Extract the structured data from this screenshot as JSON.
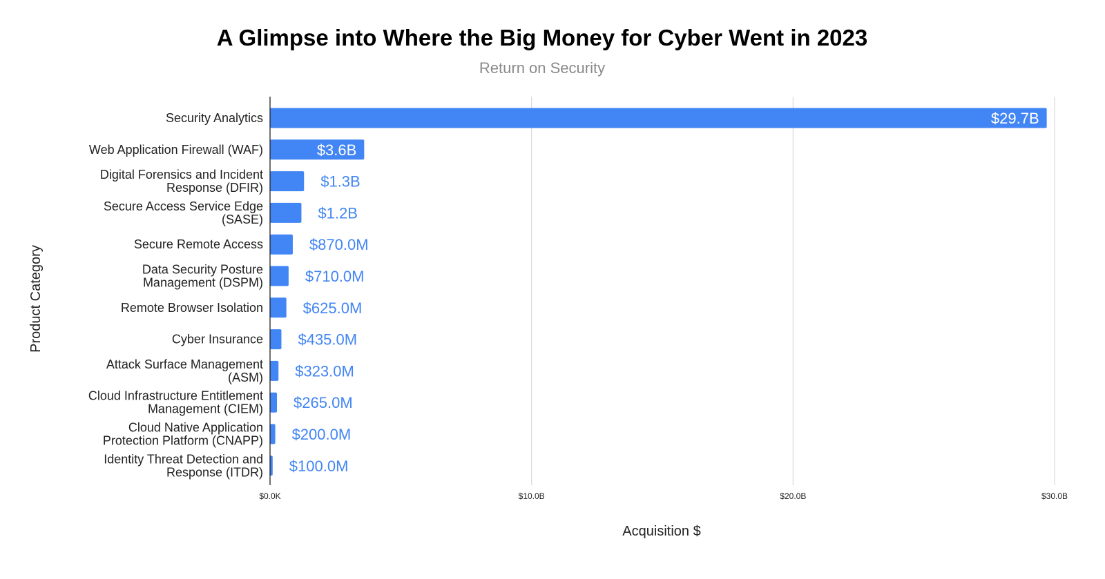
{
  "chart_data": {
    "type": "bar",
    "orientation": "horizontal",
    "title": "A Glimpse into Where the Big Money for Cyber Went in 2023",
    "subtitle": "Return on Security",
    "xlabel": "Acquisition $",
    "ylabel": "Product Category",
    "xlim": [
      0,
      30
    ],
    "x_unit": "billions USD",
    "x_ticks": [
      0,
      10,
      20,
      30
    ],
    "x_tick_labels": [
      "$0.0K",
      "$10.0B",
      "$20.0B",
      "$30.0B"
    ],
    "grid": "vertical",
    "bar_color": "#4285f4",
    "categories": [
      [
        "Security Analytics"
      ],
      [
        "Web Application Firewall (WAF)"
      ],
      [
        "Digital Forensics and Incident",
        "Response (DFIR)"
      ],
      [
        "Secure Access Service Edge",
        "(SASE)"
      ],
      [
        "Secure Remote Access"
      ],
      [
        "Data Security Posture",
        "Management (DSPM)"
      ],
      [
        "Remote Browser Isolation"
      ],
      [
        "Cyber Insurance"
      ],
      [
        "Attack Surface Management",
        "(ASM)"
      ],
      [
        "Cloud Infrastructure Entitlement",
        "Management (CIEM)"
      ],
      [
        "Cloud Native Application",
        "Protection Platform (CNAPP)"
      ],
      [
        "Identity Threat Detection and",
        "Response (ITDR)"
      ]
    ],
    "values": [
      29.7,
      3.6,
      1.3,
      1.2,
      0.87,
      0.71,
      0.625,
      0.435,
      0.323,
      0.265,
      0.2,
      0.1
    ],
    "data_labels": [
      "$29.7B",
      "$3.6B",
      "$1.3B",
      "$1.2B",
      "$870.0M",
      "$710.0M",
      "$625.0M",
      "$435.0M",
      "$323.0M",
      "$265.0M",
      "$200.0M",
      "$100.0M"
    ]
  }
}
